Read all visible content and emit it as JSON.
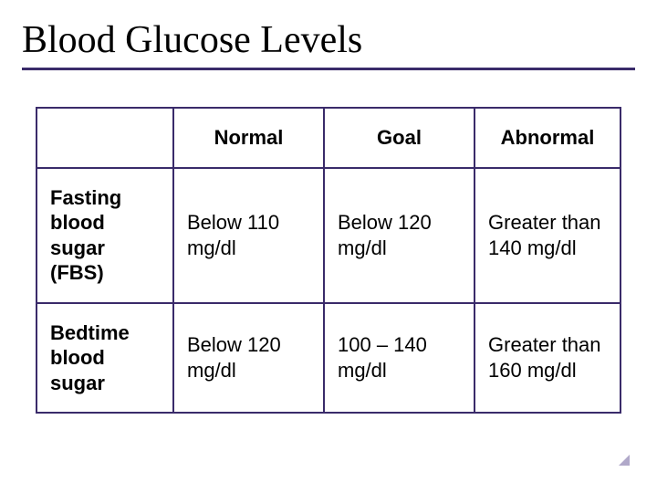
{
  "title": "Blood Glucose Levels",
  "table": {
    "type": "table",
    "border_color": "#3a2b6a",
    "background_color": "#ffffff",
    "columns": [
      "",
      "Normal",
      "Goal",
      "Abnormal"
    ],
    "rows": [
      {
        "label": "Fasting blood sugar (FBS)",
        "normal": "Below 110 mg/dl",
        "goal": "Below 120 mg/dl",
        "abnormal": "Greater than 140 mg/dl"
      },
      {
        "label": "Bedtime blood sugar",
        "normal": "Below 120 mg/dl",
        "goal": "100 – 140 mg/dl",
        "abnormal": "Greater than 160 mg/dl"
      }
    ],
    "header_fontweight": 700,
    "cell_fontsize": 22,
    "title_fontsize": 42
  },
  "colors": {
    "rule": "#3a2b6a",
    "text": "#000000",
    "corner_nub": "#b0a8c9"
  }
}
